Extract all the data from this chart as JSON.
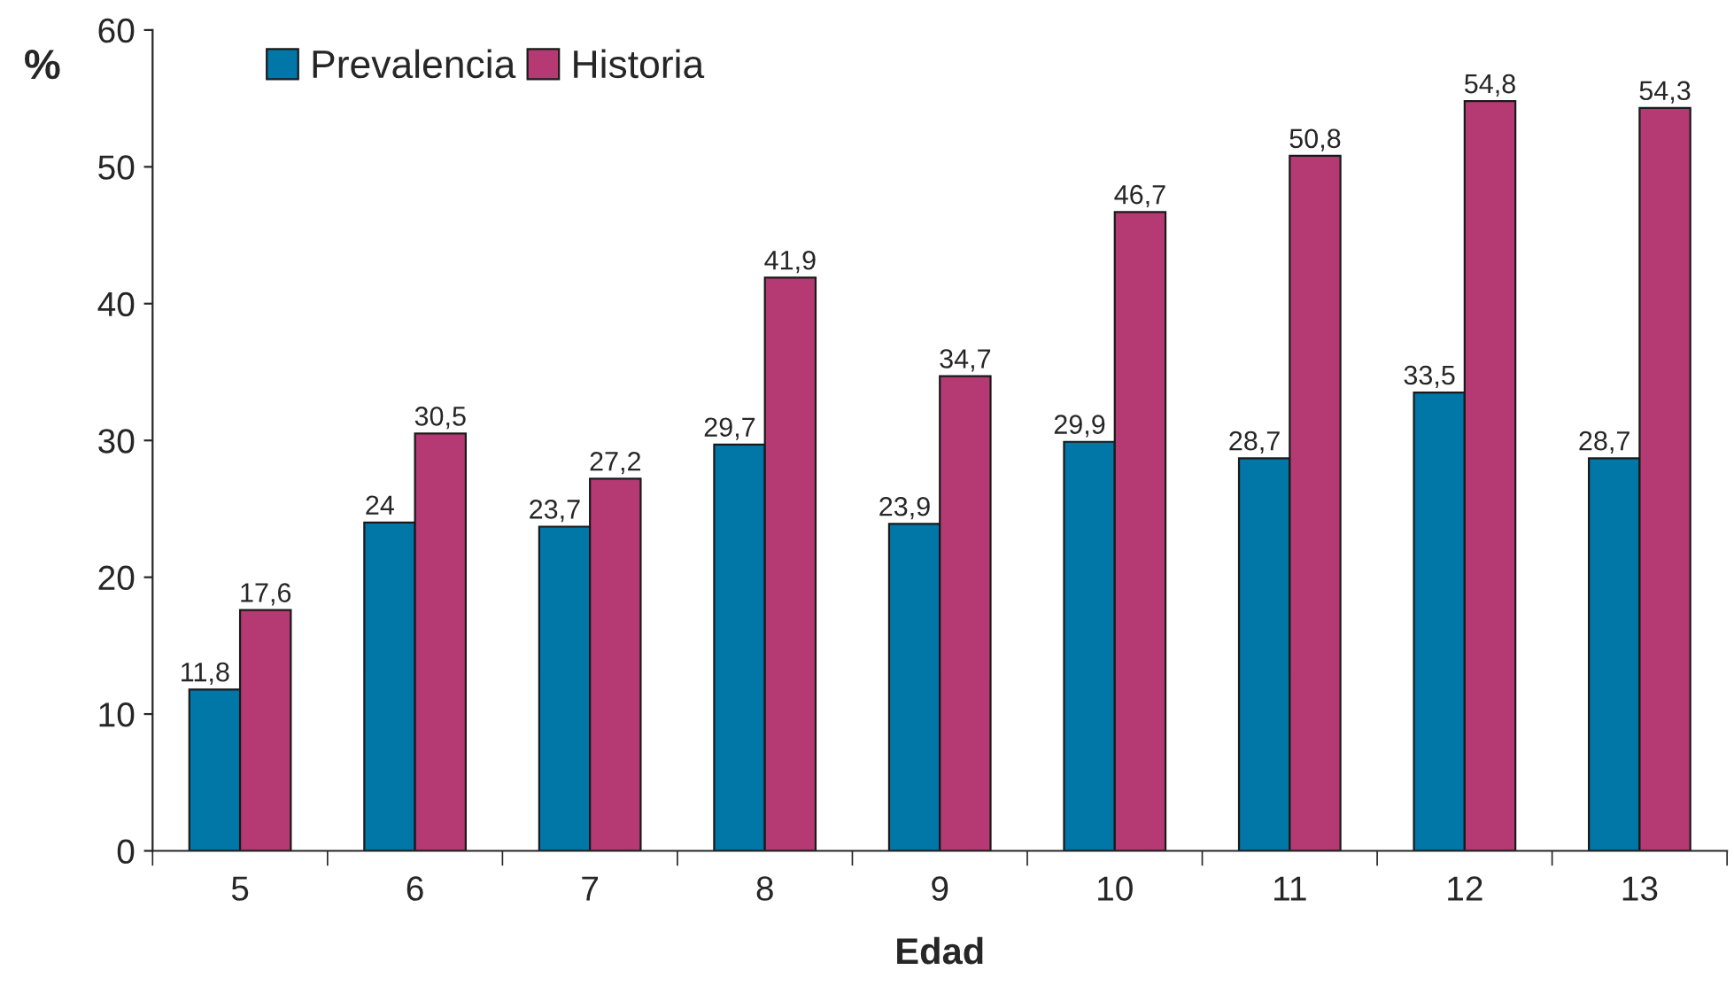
{
  "chart_data": {
    "type": "bar",
    "xlabel": "Edad",
    "ylabel": "%",
    "categories": [
      "5",
      "6",
      "7",
      "8",
      "9",
      "10",
      "11",
      "12",
      "13"
    ],
    "series": [
      {
        "name": "Prevalencia",
        "color": "#0077a6",
        "values": [
          11.8,
          24,
          23.7,
          29.7,
          23.9,
          29.9,
          28.7,
          33.5,
          28.7
        ],
        "value_labels": [
          "11,8",
          "24",
          "23,7",
          "29,7",
          "23,9",
          "29,9",
          "28,7",
          "33,5",
          "28,7"
        ]
      },
      {
        "name": "Historia",
        "color": "#b53a74",
        "values": [
          17.6,
          30.5,
          27.2,
          41.9,
          34.7,
          46.7,
          50.8,
          54.8,
          54.3
        ],
        "value_labels": [
          "17,6",
          "30,5",
          "27,2",
          "41,9",
          "34,7",
          "46,7",
          "50,8",
          "54,8",
          "54,3"
        ]
      }
    ],
    "ylim": [
      0,
      60
    ],
    "yticks": [
      0,
      10,
      20,
      30,
      40,
      50,
      60
    ],
    "grid": false,
    "legend": "top left"
  }
}
